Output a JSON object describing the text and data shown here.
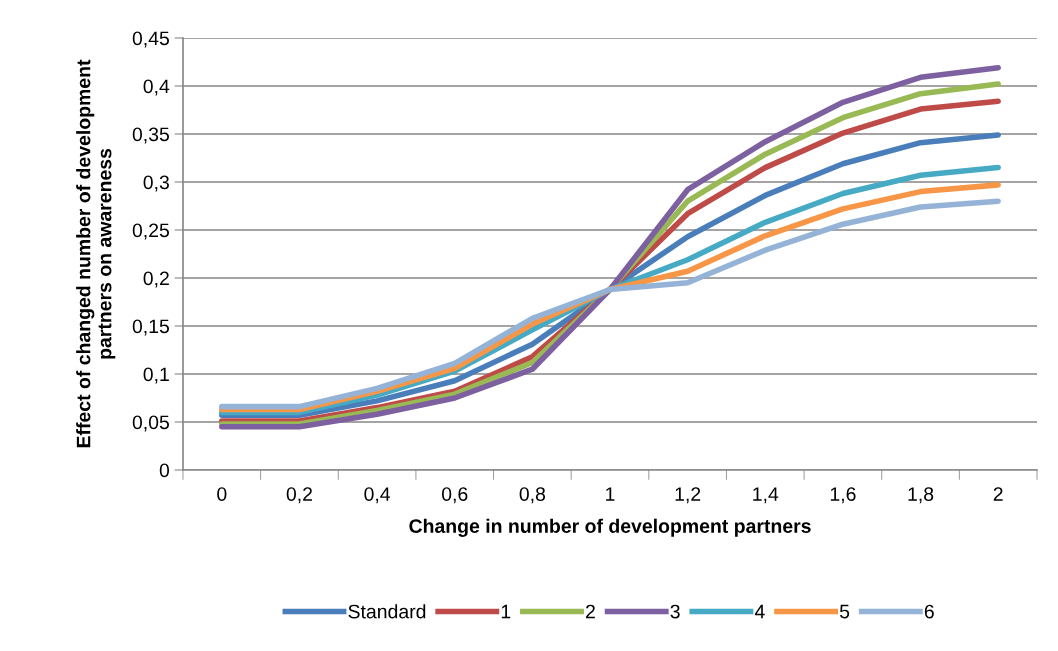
{
  "chart_data": {
    "type": "line",
    "xlabel": "Change in number of development partners",
    "ylabel": "Effect of changed number of development\npartners on awareness",
    "categories": [
      "0",
      "0,2",
      "0,4",
      "0,6",
      "0,8",
      "1",
      "1,2",
      "1,4",
      "1,6",
      "1,8",
      "2"
    ],
    "ylim": [
      0,
      0.45
    ],
    "yticks": [
      {
        "value": 0,
        "label": "0"
      },
      {
        "value": 0.05,
        "label": "0,05"
      },
      {
        "value": 0.1,
        "label": "0,1"
      },
      {
        "value": 0.15,
        "label": "0,15"
      },
      {
        "value": 0.2,
        "label": "0,2"
      },
      {
        "value": 0.25,
        "label": "0,25"
      },
      {
        "value": 0.3,
        "label": "0,3"
      },
      {
        "value": 0.35,
        "label": "0,35"
      },
      {
        "value": 0.4,
        "label": "0,4"
      },
      {
        "value": 0.45,
        "label": "0,45"
      }
    ],
    "grid": "y",
    "legend": "bottom",
    "marker": "none",
    "line_style": "solid",
    "series": [
      {
        "name": "Standard",
        "color": "#4a7ebb",
        "values": [
          0.057,
          0.057,
          0.072,
          0.093,
          0.131,
          0.188,
          0.243,
          0.286,
          0.319,
          0.341,
          0.349
        ]
      },
      {
        "name": "1",
        "color": "#be4b48",
        "values": [
          0.051,
          0.051,
          0.065,
          0.082,
          0.118,
          0.188,
          0.267,
          0.315,
          0.351,
          0.376,
          0.384
        ]
      },
      {
        "name": "2",
        "color": "#98b954",
        "values": [
          0.048,
          0.048,
          0.062,
          0.079,
          0.112,
          0.188,
          0.28,
          0.329,
          0.367,
          0.392,
          0.402
        ]
      },
      {
        "name": "3",
        "color": "#7d60a0",
        "values": [
          0.045,
          0.045,
          0.058,
          0.075,
          0.105,
          0.188,
          0.292,
          0.342,
          0.383,
          0.409,
          0.419
        ]
      },
      {
        "name": "4",
        "color": "#46aac5",
        "values": [
          0.06,
          0.06,
          0.078,
          0.103,
          0.146,
          0.188,
          0.219,
          0.258,
          0.288,
          0.307,
          0.315
        ]
      },
      {
        "name": "5",
        "color": "#f79646",
        "values": [
          0.063,
          0.063,
          0.082,
          0.106,
          0.152,
          0.188,
          0.207,
          0.244,
          0.272,
          0.29,
          0.297
        ]
      },
      {
        "name": "6",
        "color": "#95b3d7",
        "values": [
          0.066,
          0.066,
          0.085,
          0.111,
          0.158,
          0.188,
          0.195,
          0.229,
          0.256,
          0.274,
          0.28
        ]
      }
    ]
  }
}
